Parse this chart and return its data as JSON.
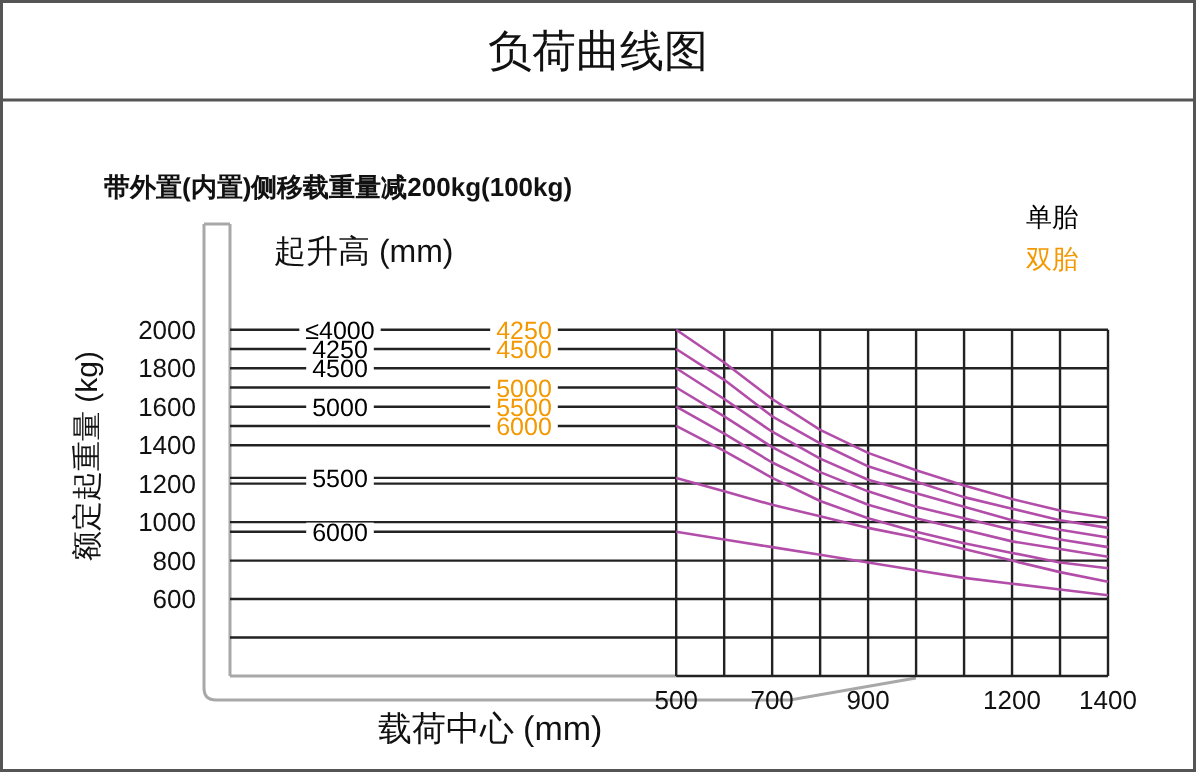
{
  "chart_data": {
    "type": "line",
    "title": "负荷曲线图",
    "subtitle": "带外置(内置)侧移载重量减200kg(100kg)",
    "xlabel": "载荷中心 (mm)",
    "ylabel": "额定起重量 (kg)",
    "annotations": [
      "起升高 (mm)",
      "单胎",
      "双胎",
      "≤4000",
      "4250",
      "4500",
      "5000",
      "5500",
      "6000",
      "4250",
      "4500",
      "5000",
      "5500",
      "6000"
    ],
    "x": [
      500,
      600,
      700,
      800,
      900,
      1000,
      1100,
      1200,
      1300,
      1400
    ],
    "xlim": [
      -430,
      1400
    ],
    "xticks": [
      500,
      {
        "value": 600,
        "label": null
      },
      700,
      {
        "value": 800,
        "label": null
      },
      900,
      {
        "value": 1000,
        "label": null
      },
      {
        "value": 1100,
        "label": null
      },
      1200,
      {
        "value": 1300,
        "label": null
      },
      1400
    ],
    "ylim": [
      200,
      2550
    ],
    "yticks": [
      {
        "value": 400,
        "label": null
      },
      600,
      800,
      1000,
      1200,
      1400,
      1600,
      1800,
      2000
    ],
    "grid": true,
    "series": [
      {
        "color": "#b24ea9",
        "values": [
          2000,
          1830,
          1640,
          1480,
          1360,
          1270,
          1190,
          1120,
          1060,
          1020
        ]
      },
      {
        "color": "#b24ea9",
        "values": [
          1900,
          1740,
          1550,
          1410,
          1290,
          1210,
          1130,
          1070,
          1010,
          970
        ]
      },
      {
        "color": "#b24ea9",
        "values": [
          1800,
          1640,
          1470,
          1330,
          1220,
          1150,
          1080,
          1010,
          960,
          920
        ]
      },
      {
        "color": "#b24ea9",
        "values": [
          1700,
          1550,
          1390,
          1260,
          1160,
          1080,
          1020,
          960,
          910,
          870
        ]
      },
      {
        "color": "#b24ea9",
        "values": [
          1600,
          1460,
          1310,
          1190,
          1090,
          1020,
          960,
          900,
          860,
          820
        ]
      },
      {
        "color": "#b24ea9",
        "values": [
          1500,
          1370,
          1230,
          1110,
          1020,
          950,
          890,
          840,
          790,
          760
        ]
      },
      {
        "color": "#b24ea9",
        "values": [
          1230,
          1160,
          1090,
          1030,
          970,
          920,
          860,
          800,
          740,
          690
        ]
      },
      {
        "color": "#b24ea9",
        "values": [
          950,
          910,
          870,
          830,
          790,
          750,
          710,
          680,
          650,
          620
        ]
      }
    ],
    "ref_lines": [
      {
        "axis": "y",
        "value": 1900,
        "color": "#222222"
      },
      {
        "axis": "y",
        "value": 1700,
        "color": "#222222"
      },
      {
        "axis": "y",
        "value": 1500,
        "color": "#222222"
      },
      {
        "axis": "y",
        "value": 1230,
        "color": "#222222"
      },
      {
        "axis": "y",
        "value": 950,
        "color": "#222222"
      }
    ]
  }
}
